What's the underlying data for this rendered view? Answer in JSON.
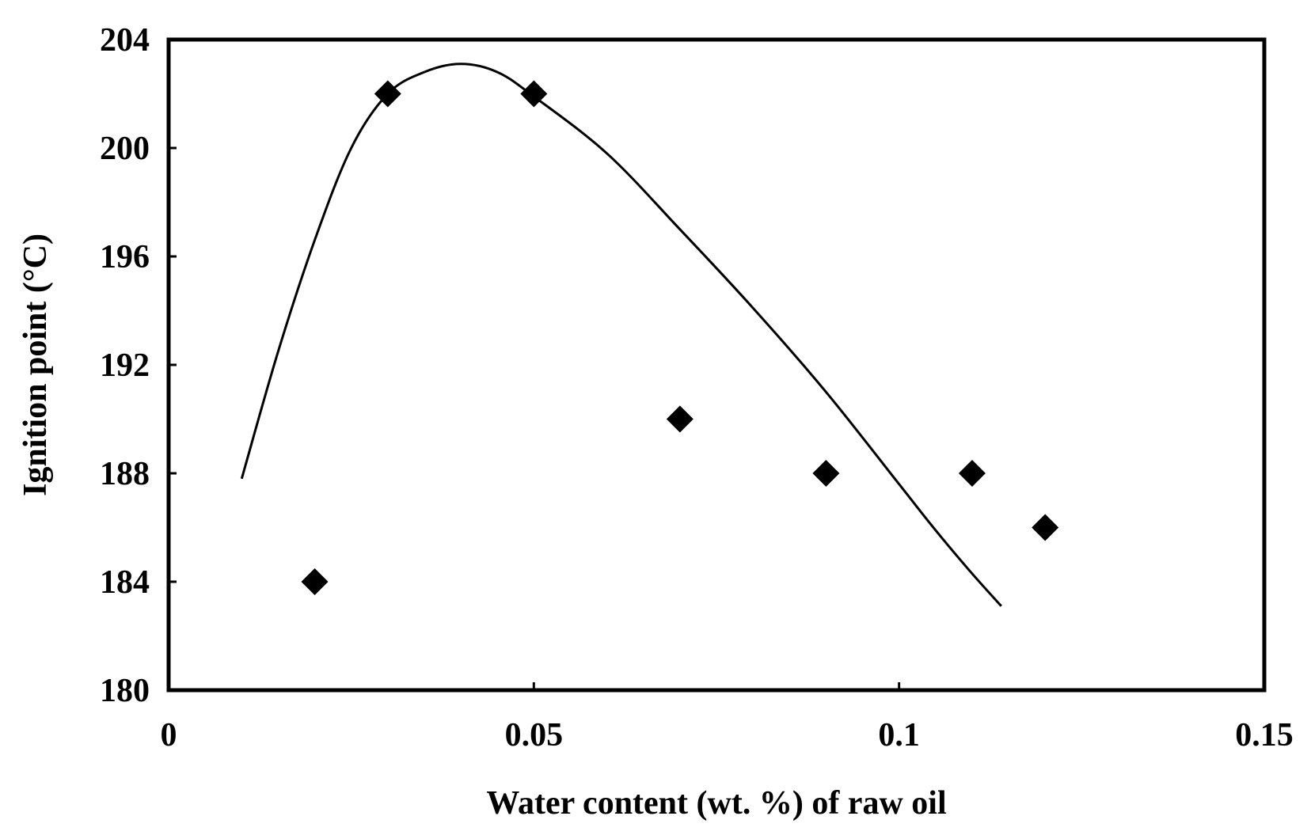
{
  "chart_data": {
    "type": "scatter",
    "xlabel": "Water content (wt. %) of raw oil",
    "ylabel": "Ignition point (°C)",
    "xlim": [
      0,
      0.15
    ],
    "ylim": [
      180,
      204
    ],
    "x_ticks": [
      0,
      0.05,
      0.1,
      0.15
    ],
    "x_tick_labels": [
      "0",
      "0.05",
      "0.1",
      "0.15"
    ],
    "y_ticks": [
      180,
      184,
      188,
      192,
      196,
      200,
      204
    ],
    "y_tick_labels": [
      "180",
      "184",
      "188",
      "192",
      "196",
      "200",
      "204"
    ],
    "grid": false,
    "legend": "none",
    "series": [
      {
        "kind": "points",
        "marker": "diamond",
        "color": "#000000",
        "points": [
          {
            "x": 0.02,
            "y": 184
          },
          {
            "x": 0.03,
            "y": 202
          },
          {
            "x": 0.05,
            "y": 202
          },
          {
            "x": 0.07,
            "y": 190
          },
          {
            "x": 0.09,
            "y": 188
          },
          {
            "x": 0.11,
            "y": 188
          },
          {
            "x": 0.12,
            "y": 186
          }
        ]
      },
      {
        "kind": "curve",
        "color": "#000000",
        "points": [
          {
            "x": 0.01,
            "y": 187.8
          },
          {
            "x": 0.015,
            "y": 192.5
          },
          {
            "x": 0.02,
            "y": 196.6
          },
          {
            "x": 0.025,
            "y": 200.0
          },
          {
            "x": 0.03,
            "y": 202.0
          },
          {
            "x": 0.035,
            "y": 202.8
          },
          {
            "x": 0.04,
            "y": 203.1
          },
          {
            "x": 0.045,
            "y": 202.8
          },
          {
            "x": 0.05,
            "y": 201.9
          },
          {
            "x": 0.06,
            "y": 199.8
          },
          {
            "x": 0.07,
            "y": 197.0
          },
          {
            "x": 0.08,
            "y": 194.1
          },
          {
            "x": 0.09,
            "y": 191.0
          },
          {
            "x": 0.1,
            "y": 187.6
          },
          {
            "x": 0.105,
            "y": 185.9
          },
          {
            "x": 0.11,
            "y": 184.3
          },
          {
            "x": 0.114,
            "y": 183.1
          }
        ]
      }
    ]
  }
}
